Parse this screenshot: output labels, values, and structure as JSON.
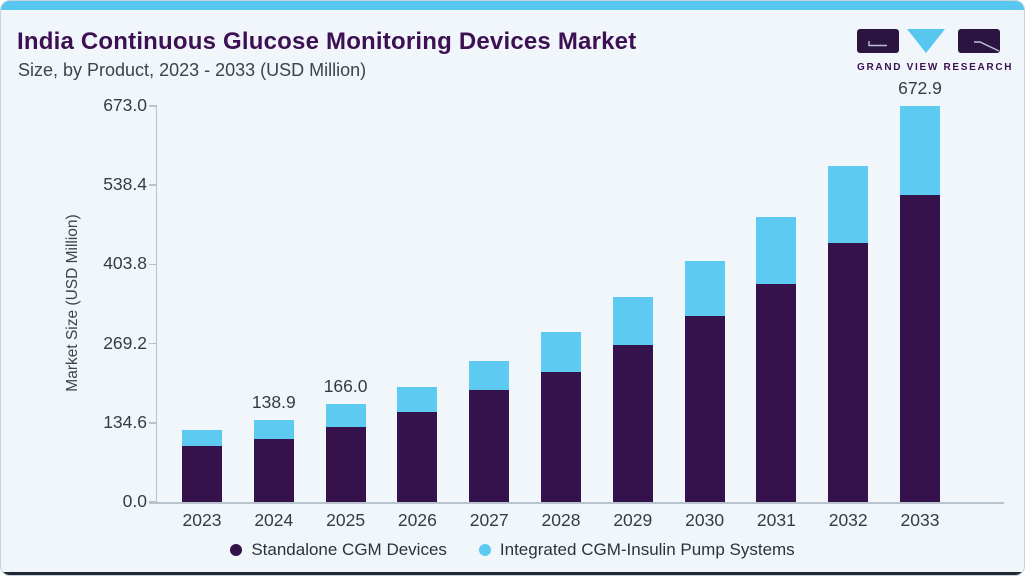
{
  "page": {
    "background": "#f0f6fa",
    "top_strip_color": "#58c7ef",
    "bottom_accent_color": "#202735",
    "title_color": "#3c1053"
  },
  "logo": {
    "text": "GRAND VIEW RESEARCH",
    "mark_purple": "#2b1540",
    "mark_blue": "#58c7ef"
  },
  "chart_data": {
    "type": "bar",
    "stacked": true,
    "title": "India Continuous Glucose Monitoring Devices Market",
    "subtitle": "Size, by Product, 2023 - 2033 (USD Million)",
    "ylabel": "Market Size (USD Million)",
    "xlabel": "",
    "ylim": [
      0,
      673
    ],
    "yticks": [
      "0.0",
      "134.6",
      "269.2",
      "403.8",
      "538.4",
      "673.0"
    ],
    "grid": false,
    "legend_position": "bottom",
    "categories": [
      "2023",
      "2024",
      "2025",
      "2026",
      "2027",
      "2028",
      "2029",
      "2030",
      "2031",
      "2032",
      "2033"
    ],
    "series": [
      {
        "name": "Standalone CGM Devices",
        "color": "#36124d",
        "values": [
          94.7,
          107.2,
          126.8,
          153.6,
          191.1,
          221.5,
          266.2,
          316.1,
          369.7,
          439.4,
          521.6
        ]
      },
      {
        "name": "Integrated CGM-Insulin Pump Systems",
        "color": "#5ccaf1",
        "values": [
          28.5,
          31.7,
          39.2,
          41.1,
          48.2,
          67.9,
          82.1,
          92.9,
          114.4,
          132.2,
          151.3
        ]
      }
    ],
    "totals": [
      123.2,
      138.9,
      166.0,
      194.7,
      239.3,
      289.4,
      348.3,
      409.0,
      484.1,
      571.6,
      672.9
    ],
    "bar_labels": [
      "",
      "138.9",
      "166.0",
      "",
      "",
      "",
      "",
      "",
      "",
      "",
      "672.9"
    ]
  }
}
